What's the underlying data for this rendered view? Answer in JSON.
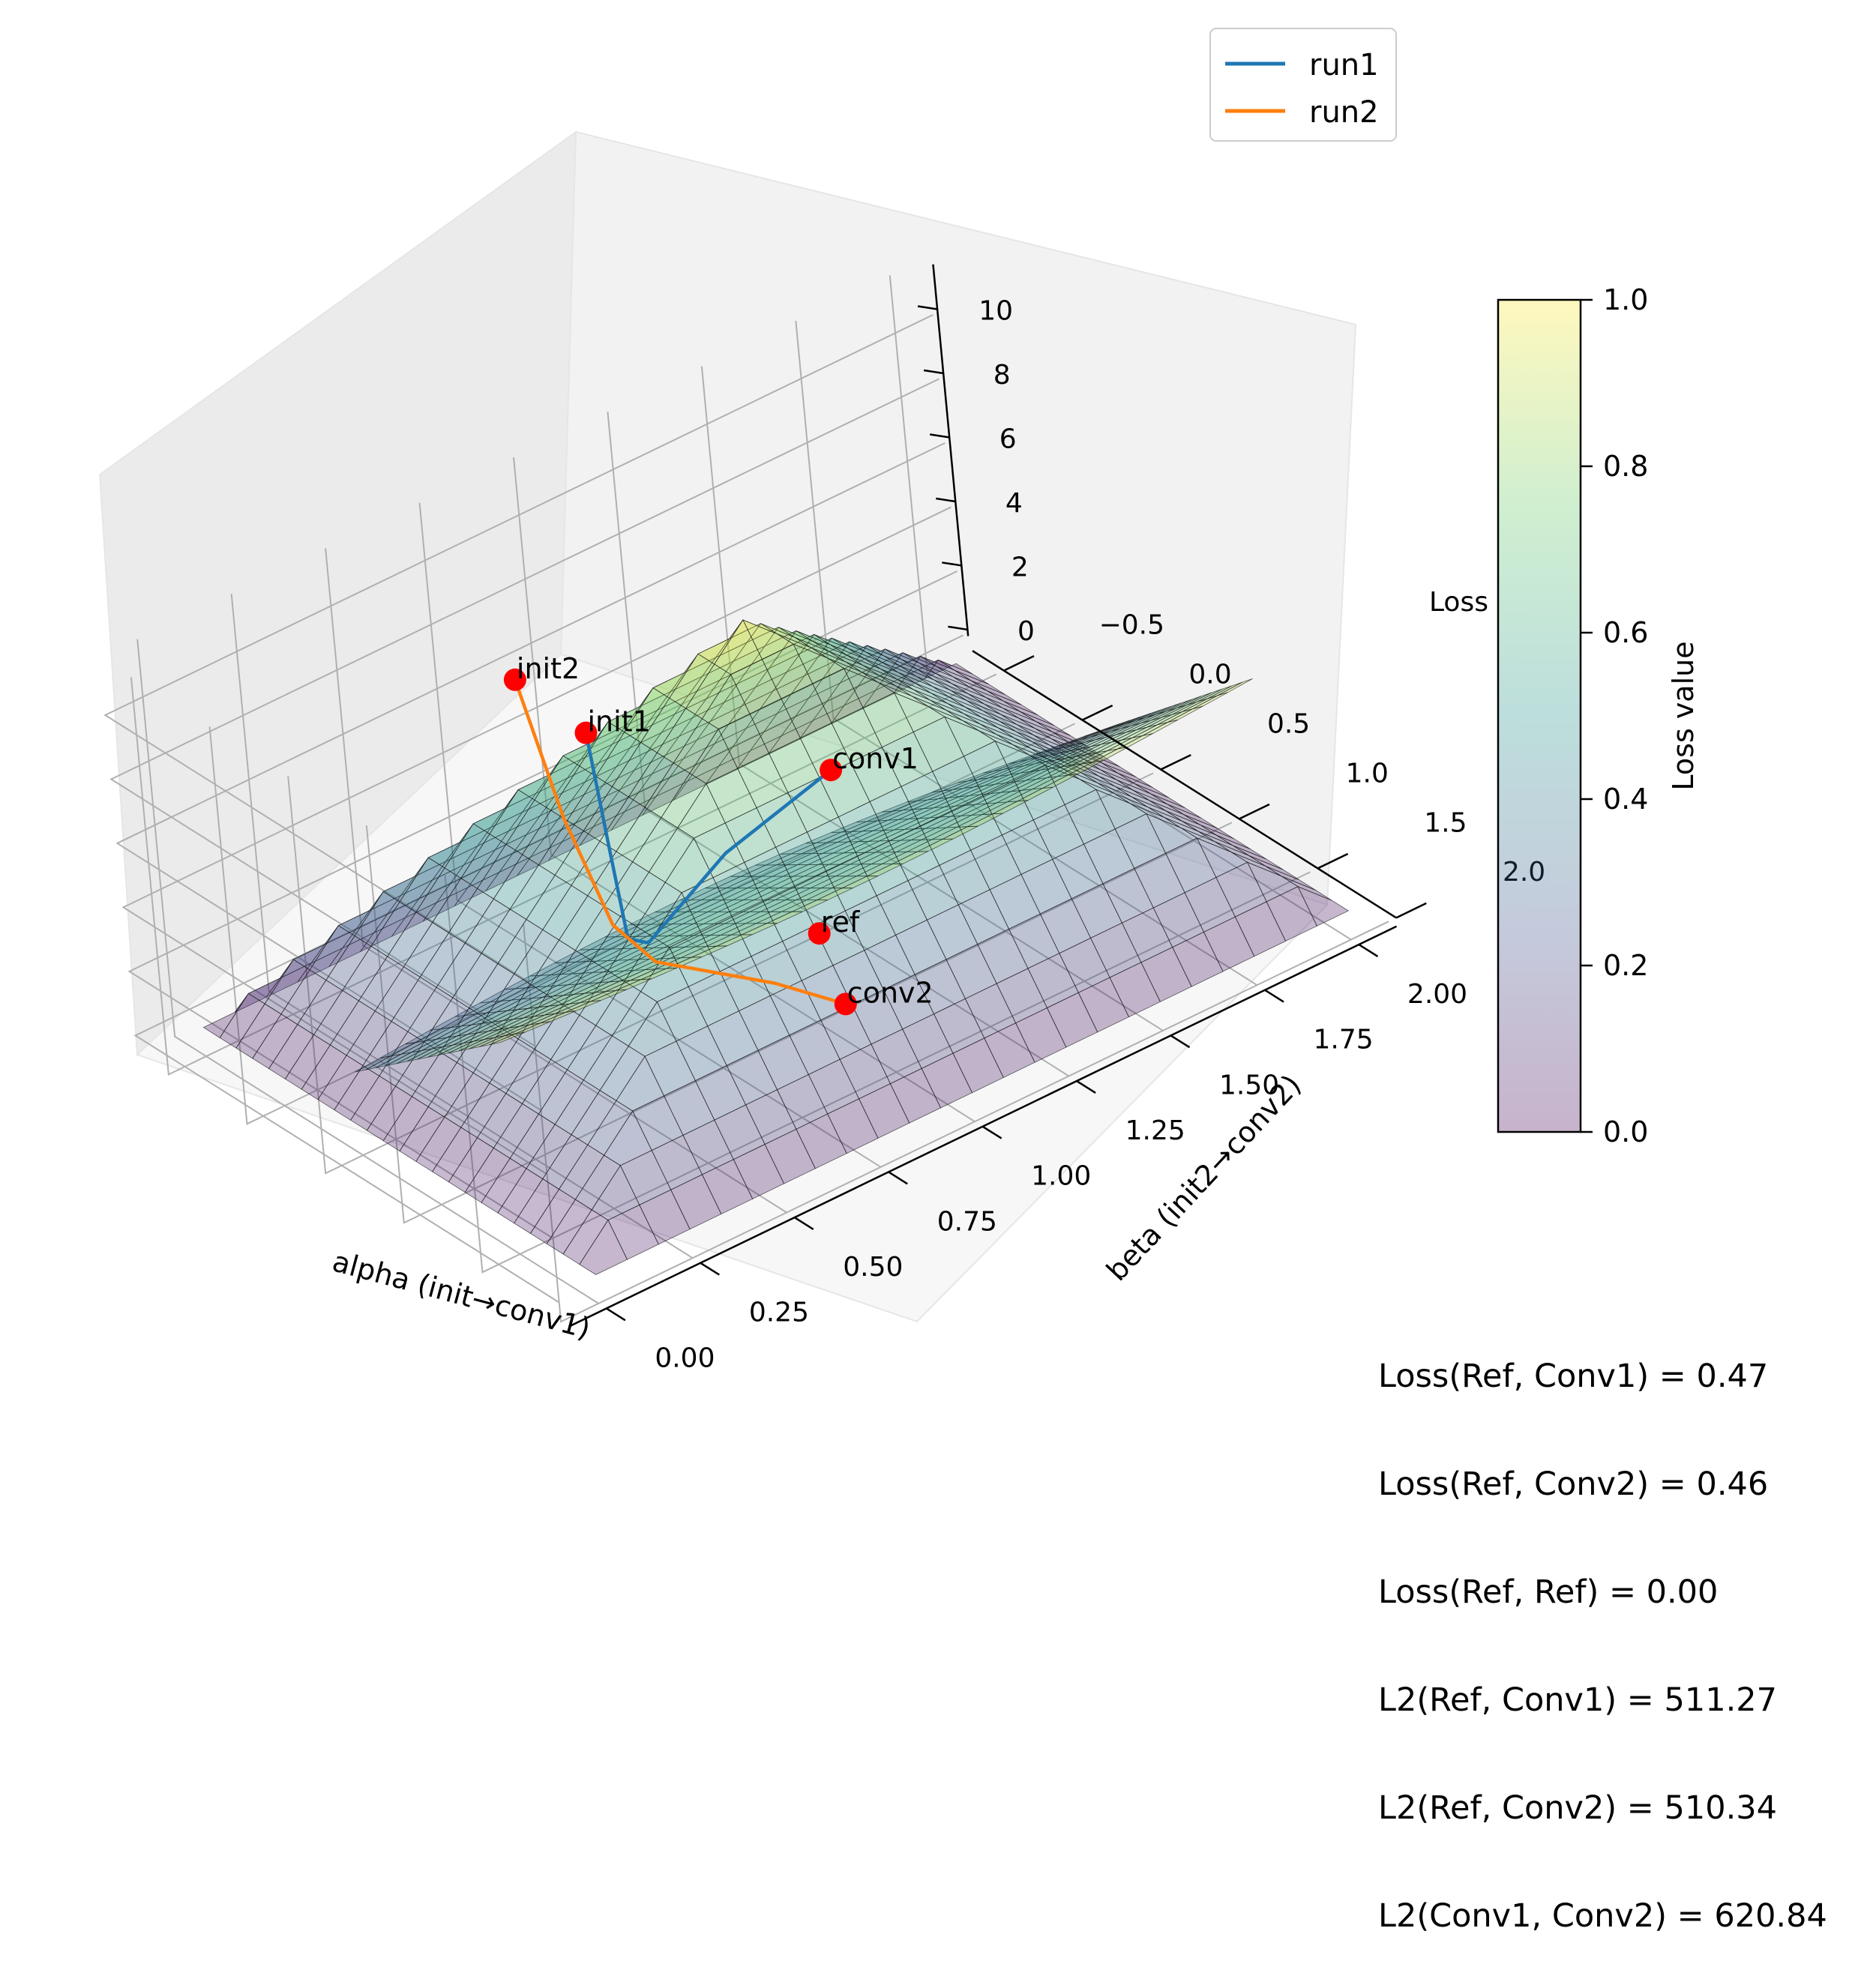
{
  "chart_data": {
    "type": "surface",
    "subtype": "3d loss landscape with optimization trajectories",
    "title": "",
    "xlabel": "alpha (init→conv1)",
    "ylabel": "beta (init2→conv2)",
    "zlabel": "Loss",
    "xlim": [
      -0.1,
      2.1
    ],
    "ylim": [
      -0.7,
      2.0
    ],
    "zlim": [
      -0.6,
      11.8
    ],
    "x_ticks": [
      "0.00",
      "0.25",
      "0.50",
      "0.75",
      "1.00",
      "1.25",
      "1.50",
      "1.75",
      "2.00"
    ],
    "y_ticks": [
      "−0.5",
      "0.0",
      "0.5",
      "1.0",
      "1.5",
      "2.0"
    ],
    "z_ticks": [
      "0",
      "2",
      "4",
      "6",
      "8",
      "10"
    ],
    "grid": true,
    "colormap": "viridis",
    "surface_alpha": 0.3,
    "surfaces": [
      {
        "description": "pyramid-shaped surface peaking at init1",
        "corner_z": {
          "alpha0_beta_neg0.5": 0.4,
          "alpha0_beta2": 0.3,
          "alpha1_beta0.75": 11.2,
          "alpha2_beta_neg0.5": 0.6,
          "alpha2_beta2": 0.9
        }
      },
      {
        "description": "saddle-shaped surface (alpha 0..2, beta 0.5..1.5)",
        "corner_z": {
          "alpha0_beta0.5": 2.0,
          "alpha0_beta1.5": 6.1,
          "alpha2_beta0.5": 1.4,
          "alpha2_beta1.5": 5.9
        }
      }
    ],
    "series": [
      {
        "name": "run1",
        "color": "#1f77b4",
        "points": [
          [
            0.48,
            1.0,
            11.4
          ],
          [
            0.55,
            0.9,
            7.0
          ],
          [
            0.62,
            0.78,
            3.5
          ],
          [
            0.72,
            0.65,
            2.4
          ],
          [
            1.05,
            0.35,
            2.4
          ],
          [
            1.45,
            0.05,
            1.8
          ]
        ]
      },
      {
        "name": "run2",
        "color": "#ff7f0e",
        "points": [
          [
            0.5,
            0.5,
            11.4
          ],
          [
            0.56,
            0.58,
            7.0
          ],
          [
            0.63,
            0.66,
            3.5
          ],
          [
            0.7,
            0.74,
            2.2
          ],
          [
            0.9,
            1.0,
            1.2
          ],
          [
            1.0,
            1.2,
            0.6
          ]
        ]
      }
    ],
    "points": [
      {
        "label": "init1",
        "x": 0.48,
        "y": 1.0,
        "z": 11.4
      },
      {
        "label": "init2",
        "x": 0.5,
        "y": 0.5,
        "z": 11.4
      },
      {
        "label": "conv1",
        "x": 1.45,
        "y": 0.05,
        "z": 1.8
      },
      {
        "label": "conv2",
        "x": 1.0,
        "y": 1.2,
        "z": 0.6
      },
      {
        "label": "ref",
        "x": 1.1,
        "y": 0.8,
        "z": 1.0
      }
    ],
    "marker_color": "#ff0000",
    "legend": {
      "placement": "top-right",
      "entries": [
        {
          "name": "run1",
          "color": "#1f77b4"
        },
        {
          "name": "run2",
          "color": "#ff7f0e"
        }
      ]
    },
    "colorbar": {
      "label": "Loss value",
      "range": [
        0.0,
        1.0
      ],
      "ticks": [
        "0.0",
        "0.2",
        "0.4",
        "0.6",
        "0.8",
        "1.0"
      ],
      "colormap": "viridis",
      "alpha": 0.3
    },
    "annotations": [
      "Loss(Ref, Conv1) = 0.47",
      "Loss(Ref, Conv2) = 0.46",
      "Loss(Ref, Ref) = 0.00",
      "L2(Ref, Conv1) = 511.27",
      "L2(Ref, Conv2) = 510.34",
      "L2(Conv1, Conv2) = 620.84"
    ]
  }
}
